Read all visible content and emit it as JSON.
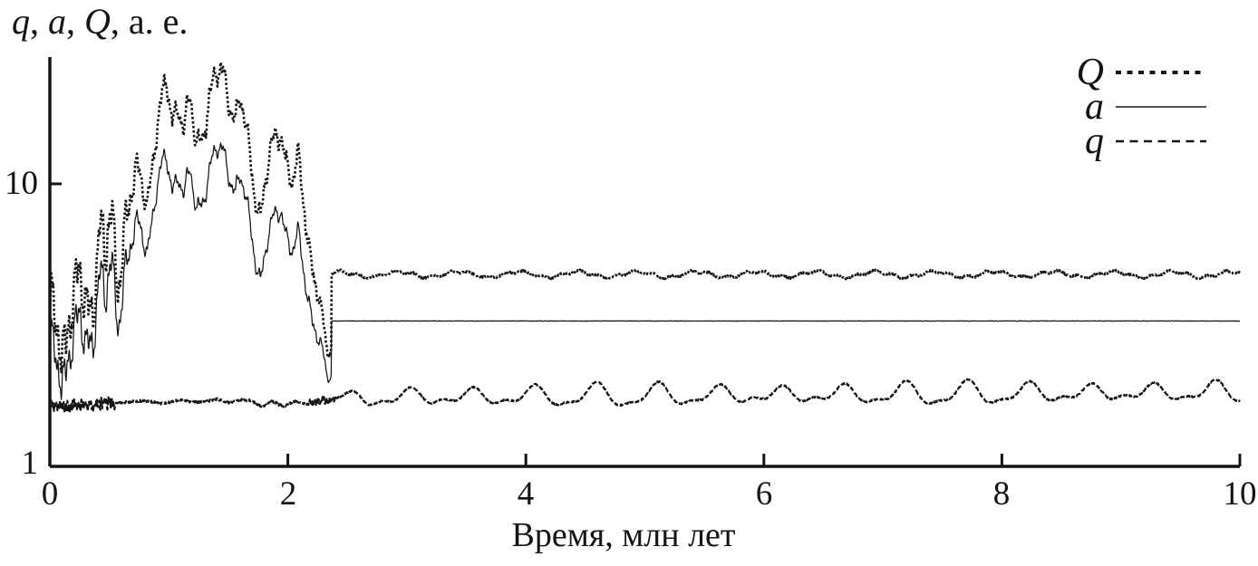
{
  "figure": {
    "ylabel_parts": [
      {
        "text": "q",
        "italic": true
      },
      {
        "text": ", ",
        "italic": false
      },
      {
        "text": "a",
        "italic": true
      },
      {
        "text": ", ",
        "italic": false
      },
      {
        "text": "Q",
        "italic": true
      },
      {
        "text": ", а. е.",
        "italic": false
      }
    ]
  },
  "chart_data": {
    "type": "line",
    "title": "",
    "xlabel": "Время, млн лет",
    "ylabel": "q, a, Q, а. е.",
    "x_axis": {
      "label": "Время, млн лет",
      "range": [
        0,
        10
      ],
      "ticks": [
        0,
        2,
        4,
        6,
        8,
        10
      ]
    },
    "y_axis": {
      "label": "q, a, Q, а. е.",
      "scale": "log",
      "range": [
        1,
        28
      ],
      "ticks": [
        1,
        10
      ]
    },
    "grid": false,
    "legend_position": "top-right",
    "line_color": "#161616",
    "series": [
      {
        "name": "Q",
        "role": "upper",
        "line_style": "dotted",
        "color": "#161616",
        "keypoints": [
          [
            0,
            2.7
          ],
          [
            0.05,
            3.3
          ],
          [
            0.1,
            2.5
          ],
          [
            0.15,
            4.4
          ],
          [
            0.2,
            3.2
          ],
          [
            0.25,
            4.2
          ],
          [
            0.3,
            3.4
          ],
          [
            0.36,
            5.0
          ],
          [
            0.42,
            6.4
          ],
          [
            0.47,
            4.9
          ],
          [
            0.52,
            6.8
          ],
          [
            0.58,
            5.6
          ],
          [
            0.64,
            7.6
          ],
          [
            0.7,
            8.8
          ],
          [
            0.76,
            11.0
          ],
          [
            0.82,
            9.2
          ],
          [
            0.88,
            13.5
          ],
          [
            0.93,
            17.0
          ],
          [
            0.98,
            23.0
          ],
          [
            1.03,
            18.0
          ],
          [
            1.08,
            20.0
          ],
          [
            1.13,
            14.8
          ],
          [
            1.18,
            19.0
          ],
          [
            1.23,
            14.0
          ],
          [
            1.28,
            16.0
          ],
          [
            1.34,
            19.5
          ],
          [
            1.4,
            23.0
          ],
          [
            1.46,
            25.0
          ],
          [
            1.51,
            21.0
          ],
          [
            1.56,
            17.0
          ],
          [
            1.6,
            19.0
          ],
          [
            1.66,
            14.0
          ],
          [
            1.71,
            10.6
          ],
          [
            1.77,
            8.0
          ],
          [
            1.83,
            11.0
          ],
          [
            1.89,
            13.8
          ],
          [
            1.94,
            16.2
          ],
          [
            1.99,
            12.5
          ],
          [
            2.04,
            10.0
          ],
          [
            2.09,
            11.3
          ],
          [
            2.14,
            8.0
          ],
          [
            2.19,
            5.8
          ],
          [
            2.24,
            4.6
          ],
          [
            2.29,
            3.2
          ],
          [
            2.33,
            2.4
          ],
          [
            2.365,
            2.6
          ]
        ],
        "transition_time": 2.365,
        "chaos_noise": {
          "early_amp": 0.26,
          "early_until": 0.52,
          "ramp_to": 0.8,
          "main_amp": 0.1,
          "taper_from": 2.22,
          "end_amp": 0.05,
          "scale": 1.0,
          "jitter": 0.006
        },
        "stable": {
          "mean": 4.78,
          "wave_amp_log": 0.01,
          "wave_period": 0.5,
          "wave2_amp_log": 0.0045,
          "wave2_period": 0.155,
          "jitter_log": 0.003
        }
      },
      {
        "name": "a",
        "role": "middle",
        "line_style": "solid",
        "color": "#161616",
        "keypoints": [
          [
            0,
            2.1
          ],
          [
            0.05,
            2.5
          ],
          [
            0.1,
            1.95
          ],
          [
            0.15,
            3.2
          ],
          [
            0.2,
            2.4
          ],
          [
            0.25,
            3.1
          ],
          [
            0.3,
            2.5
          ],
          [
            0.36,
            3.6
          ],
          [
            0.42,
            4.5
          ],
          [
            0.47,
            3.5
          ],
          [
            0.52,
            4.7
          ],
          [
            0.58,
            3.9
          ],
          [
            0.64,
            5.2
          ],
          [
            0.7,
            5.9
          ],
          [
            0.76,
            7.2
          ],
          [
            0.82,
            6.1
          ],
          [
            0.88,
            8.6
          ],
          [
            0.93,
            10.4
          ],
          [
            0.98,
            12.4
          ],
          [
            1.03,
            10.0
          ],
          [
            1.08,
            11.2
          ],
          [
            1.13,
            8.8
          ],
          [
            1.18,
            10.6
          ],
          [
            1.23,
            8.2
          ],
          [
            1.28,
            9.2
          ],
          [
            1.34,
            10.9
          ],
          [
            1.4,
            12.6
          ],
          [
            1.46,
            13.2
          ],
          [
            1.51,
            11.4
          ],
          [
            1.56,
            9.4
          ],
          [
            1.6,
            10.2
          ],
          [
            1.66,
            8.0
          ],
          [
            1.71,
            6.3
          ],
          [
            1.77,
            4.7
          ],
          [
            1.83,
            6.1
          ],
          [
            1.89,
            7.4
          ],
          [
            1.94,
            8.6
          ],
          [
            1.99,
            6.8
          ],
          [
            2.04,
            5.7
          ],
          [
            2.09,
            6.2
          ],
          [
            2.14,
            4.7
          ],
          [
            2.19,
            3.7
          ],
          [
            2.24,
            3.1
          ],
          [
            2.29,
            2.45
          ],
          [
            2.33,
            1.98
          ],
          [
            2.365,
            2.1
          ]
        ],
        "transition_time": 2.365,
        "chaos_noise": {
          "early_amp": 0.26,
          "early_until": 0.52,
          "ramp_to": 0.8,
          "main_amp": 0.1,
          "taper_from": 2.22,
          "end_amp": 0.05,
          "scale": 0.8,
          "jitter": 0.0018
        },
        "stable": {
          "mean": 3.27,
          "wave_amp_log": 0.0,
          "wave_period": 1,
          "wave2_amp_log": 0.0,
          "wave2_period": 1,
          "jitter_log": 0.0007
        }
      },
      {
        "name": "q",
        "role": "lower",
        "line_style": "dashed",
        "color": "#161616",
        "keypoints": [
          [
            0,
            1.62
          ],
          [
            0.3,
            1.65
          ],
          [
            0.6,
            1.68
          ],
          [
            0.8,
            1.71
          ],
          [
            0.95,
            1.67
          ],
          [
            1.1,
            1.72
          ],
          [
            1.25,
            1.68
          ],
          [
            1.4,
            1.73
          ],
          [
            1.5,
            1.68
          ],
          [
            1.62,
            1.73
          ],
          [
            1.7,
            1.7
          ],
          [
            1.78,
            1.62
          ],
          [
            1.86,
            1.71
          ],
          [
            1.96,
            1.63
          ],
          [
            2.06,
            1.7
          ],
          [
            2.16,
            1.66
          ],
          [
            2.26,
            1.7
          ],
          [
            2.4,
            1.72
          ]
        ],
        "transition_time": 2.4,
        "fuzz": {
          "early_amp": 0.018,
          "early_until": 0.55,
          "mid_amp": 0.0035,
          "late_from": 2.18,
          "late_amp": 0.011,
          "late_until": 2.42
        },
        "stable": {
          "mean_start": 1.75,
          "mean_end": 1.83,
          "wave_amp_log": 0.03,
          "wave_period": 0.52,
          "mod_period": 2.8,
          "mod_frac": 0.3,
          "wave2_amp_log": 0.013,
          "wave2_period": 0.26,
          "jitter_log": 0.0025,
          "ramp": 0.25
        }
      }
    ]
  }
}
